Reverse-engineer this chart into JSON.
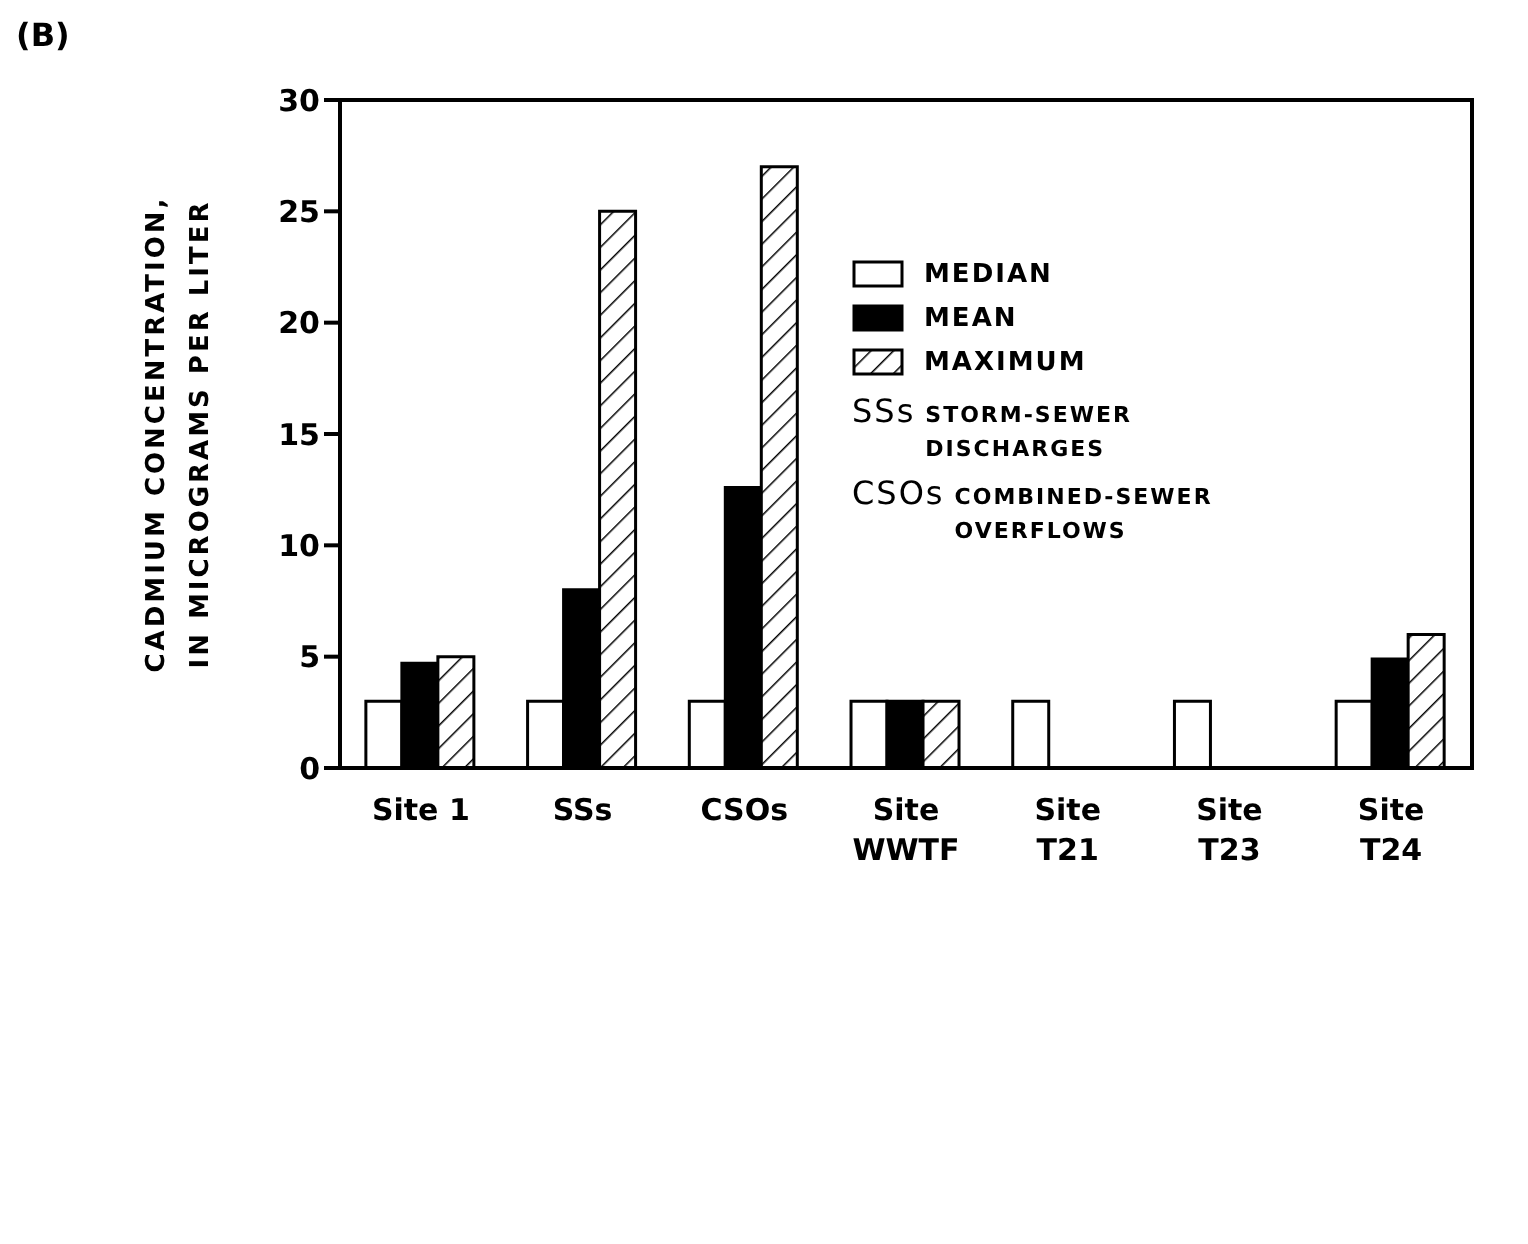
{
  "chart_data": {
    "type": "bar",
    "title": "(B)",
    "ylabel": "CADMIUM CONCENTRATION,\nIN MICROGRAMS PER LITER",
    "categories": [
      "Site 1",
      "SSs",
      "CSOs",
      "Site\nWWTF",
      "Site\nT21",
      "Site\nT23",
      "Site\nT24"
    ],
    "series": [
      {
        "name": "MEDIAN",
        "color": "#ffffff",
        "values": [
          3,
          3,
          3,
          3,
          3,
          3,
          3
        ]
      },
      {
        "name": "MEAN",
        "color": "#000000",
        "values": [
          4.7,
          8,
          12.6,
          3,
          null,
          null,
          4.9
        ]
      },
      {
        "name": "MAXIMUM",
        "color": "#000000",
        "values": [
          5,
          25,
          27,
          3,
          null,
          null,
          6
        ]
      }
    ],
    "ylim": [
      0,
      30
    ],
    "yticks": [
      0,
      5,
      10,
      15,
      20,
      25,
      30
    ],
    "grid": false,
    "legend": "top right",
    "annotations": [
      "SSs STORM-SEWER\nDISCHARGES",
      "CSOs COMBINED-SEWER\nOVERFLOWS"
    ]
  }
}
